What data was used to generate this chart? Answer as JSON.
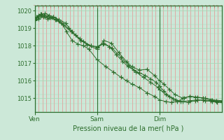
{
  "xlabel": "Pression niveau de la mer( hPa )",
  "background_color": "#cce8d8",
  "plot_bg_color": "#cce8d8",
  "line_color": "#2d6e2d",
  "marker_color": "#2d6e2d",
  "ylim": [
    1014.2,
    1020.3
  ],
  "yticks": [
    1015,
    1016,
    1017,
    1018,
    1019,
    1020
  ],
  "xtick_labels": [
    "Ven",
    "Sam",
    "Dim"
  ],
  "xtick_positions": [
    0,
    0.333,
    0.667
  ],
  "vline_positions": [
    0.0,
    0.333,
    0.667
  ],
  "n_vertical_lines": 48,
  "series1_x": [
    0.0,
    0.01,
    0.02,
    0.03,
    0.04,
    0.055,
    0.07,
    0.085,
    0.1,
    0.115,
    0.13,
    0.15,
    0.17,
    0.2,
    0.23,
    0.26,
    0.29,
    0.333,
    0.38,
    0.42,
    0.46,
    0.49,
    0.52,
    0.56,
    0.6,
    0.64,
    0.667,
    0.7,
    0.73,
    0.76,
    0.8,
    0.83,
    0.86,
    0.9,
    0.94,
    0.97,
    1.0
  ],
  "series1_y": [
    1019.55,
    1019.65,
    1019.75,
    1019.8,
    1019.75,
    1019.65,
    1019.55,
    1019.6,
    1019.65,
    1019.55,
    1019.4,
    1019.2,
    1018.8,
    1018.3,
    1018.1,
    1018.0,
    1017.8,
    1017.2,
    1016.8,
    1016.5,
    1016.2,
    1016.0,
    1015.8,
    1015.6,
    1015.3,
    1015.1,
    1014.9,
    1014.8,
    1014.75,
    1014.8,
    1015.0,
    1015.1,
    1015.05,
    1015.0,
    1014.9,
    1014.85,
    1014.8
  ],
  "series2_x": [
    0.0,
    0.01,
    0.02,
    0.035,
    0.055,
    0.075,
    0.1,
    0.13,
    0.165,
    0.2,
    0.24,
    0.28,
    0.333,
    0.37,
    0.41,
    0.45,
    0.49,
    0.52,
    0.56,
    0.6,
    0.64,
    0.667,
    0.69,
    0.72,
    0.75,
    0.79,
    0.83,
    0.87,
    0.91,
    0.95,
    1.0
  ],
  "series2_y": [
    1019.5,
    1019.6,
    1019.7,
    1019.8,
    1019.85,
    1019.75,
    1019.65,
    1019.5,
    1019.3,
    1018.8,
    1018.4,
    1018.05,
    1017.8,
    1018.3,
    1018.15,
    1017.6,
    1017.1,
    1016.8,
    1016.6,
    1016.65,
    1016.3,
    1016.0,
    1015.8,
    1015.5,
    1015.2,
    1015.0,
    1015.1,
    1015.05,
    1015.0,
    1014.9,
    1014.85
  ],
  "series3_x": [
    0.0,
    0.015,
    0.03,
    0.05,
    0.07,
    0.09,
    0.115,
    0.145,
    0.18,
    0.22,
    0.26,
    0.3,
    0.333,
    0.365,
    0.4,
    0.435,
    0.47,
    0.5,
    0.53,
    0.56,
    0.59,
    0.62,
    0.65,
    0.667,
    0.69,
    0.72,
    0.755,
    0.79,
    0.83,
    0.87,
    0.91,
    0.95,
    0.975,
    1.0
  ],
  "series3_y": [
    1019.5,
    1019.6,
    1019.7,
    1019.75,
    1019.7,
    1019.6,
    1019.5,
    1019.3,
    1019.0,
    1018.6,
    1018.25,
    1018.0,
    1017.9,
    1018.1,
    1017.95,
    1017.5,
    1017.1,
    1016.8,
    1016.6,
    1016.45,
    1016.3,
    1016.1,
    1015.9,
    1015.7,
    1015.4,
    1015.1,
    1014.9,
    1014.8,
    1014.85,
    1014.9,
    1014.85,
    1014.8,
    1014.78,
    1014.75
  ],
  "series4_x": [
    0.0,
    0.02,
    0.045,
    0.075,
    0.11,
    0.15,
    0.195,
    0.245,
    0.3,
    0.333,
    0.37,
    0.415,
    0.46,
    0.5,
    0.54,
    0.58,
    0.62,
    0.66,
    0.667,
    0.7,
    0.74,
    0.78,
    0.82,
    0.86,
    0.9,
    0.94,
    0.97,
    1.0
  ],
  "series4_y": [
    1019.45,
    1019.55,
    1019.65,
    1019.6,
    1019.5,
    1019.2,
    1018.8,
    1018.3,
    1018.0,
    1017.95,
    1018.15,
    1017.85,
    1017.35,
    1016.9,
    1016.5,
    1016.2,
    1015.9,
    1015.6,
    1015.5,
    1015.2,
    1014.95,
    1014.8,
    1014.75,
    1014.85,
    1014.9,
    1014.85,
    1014.8,
    1014.75
  ]
}
